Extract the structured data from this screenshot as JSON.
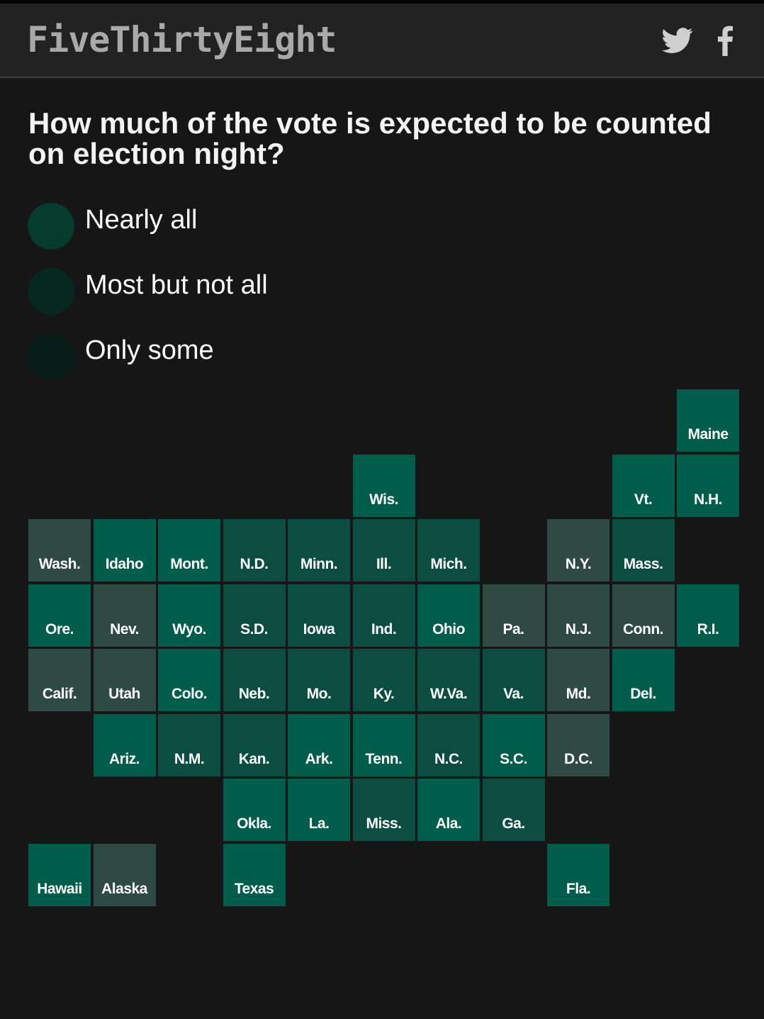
{
  "header": {
    "logo": "FiveThirtyEight",
    "twitter_icon": "twitter-icon",
    "facebook_icon": "facebook-icon"
  },
  "title": "How much of the vote is expected to be counted on election night?",
  "legend": [
    {
      "label": "Nearly all",
      "color": "#063c2b"
    },
    {
      "label": "Most but not all",
      "color": "#06281f"
    },
    {
      "label": "Only some",
      "color": "#061d18"
    }
  ],
  "colors": {
    "background": "#161616",
    "header": "#222222",
    "bright": "#005c4b",
    "mid": "#0b4d41",
    "gray": "#2f4943"
  },
  "states": [
    {
      "label": "Maine",
      "row": 0,
      "col": 10,
      "shade": "bright"
    },
    {
      "label": "Wis.",
      "row": 1,
      "col": 5,
      "shade": "bright"
    },
    {
      "label": "Vt.",
      "row": 1,
      "col": 9,
      "shade": "bright"
    },
    {
      "label": "N.H.",
      "row": 1,
      "col": 10,
      "shade": "bright"
    },
    {
      "label": "Wash.",
      "row": 2,
      "col": 0,
      "shade": "gray"
    },
    {
      "label": "Idaho",
      "row": 2,
      "col": 1,
      "shade": "bright"
    },
    {
      "label": "Mont.",
      "row": 2,
      "col": 2,
      "shade": "bright"
    },
    {
      "label": "N.D.",
      "row": 2,
      "col": 3,
      "shade": "mid"
    },
    {
      "label": "Minn.",
      "row": 2,
      "col": 4,
      "shade": "mid"
    },
    {
      "label": "Ill.",
      "row": 2,
      "col": 5,
      "shade": "mid"
    },
    {
      "label": "Mich.",
      "row": 2,
      "col": 6,
      "shade": "mid"
    },
    {
      "label": "N.Y.",
      "row": 2,
      "col": 8,
      "shade": "gray"
    },
    {
      "label": "Mass.",
      "row": 2,
      "col": 9,
      "shade": "mid"
    },
    {
      "label": "Ore.",
      "row": 3,
      "col": 0,
      "shade": "bright"
    },
    {
      "label": "Nev.",
      "row": 3,
      "col": 1,
      "shade": "gray"
    },
    {
      "label": "Wyo.",
      "row": 3,
      "col": 2,
      "shade": "bright"
    },
    {
      "label": "S.D.",
      "row": 3,
      "col": 3,
      "shade": "mid"
    },
    {
      "label": "Iowa",
      "row": 3,
      "col": 4,
      "shade": "mid"
    },
    {
      "label": "Ind.",
      "row": 3,
      "col": 5,
      "shade": "mid"
    },
    {
      "label": "Ohio",
      "row": 3,
      "col": 6,
      "shade": "bright"
    },
    {
      "label": "Pa.",
      "row": 3,
      "col": 7,
      "shade": "gray"
    },
    {
      "label": "N.J.",
      "row": 3,
      "col": 8,
      "shade": "gray"
    },
    {
      "label": "Conn.",
      "row": 3,
      "col": 9,
      "shade": "gray"
    },
    {
      "label": "R.I.",
      "row": 3,
      "col": 10,
      "shade": "bright"
    },
    {
      "label": "Calif.",
      "row": 4,
      "col": 0,
      "shade": "gray"
    },
    {
      "label": "Utah",
      "row": 4,
      "col": 1,
      "shade": "gray"
    },
    {
      "label": "Colo.",
      "row": 4,
      "col": 2,
      "shade": "bright"
    },
    {
      "label": "Neb.",
      "row": 4,
      "col": 3,
      "shade": "mid"
    },
    {
      "label": "Mo.",
      "row": 4,
      "col": 4,
      "shade": "mid"
    },
    {
      "label": "Ky.",
      "row": 4,
      "col": 5,
      "shade": "mid"
    },
    {
      "label": "W.Va.",
      "row": 4,
      "col": 6,
      "shade": "mid"
    },
    {
      "label": "Va.",
      "row": 4,
      "col": 7,
      "shade": "mid"
    },
    {
      "label": "Md.",
      "row": 4,
      "col": 8,
      "shade": "gray"
    },
    {
      "label": "Del.",
      "row": 4,
      "col": 9,
      "shade": "bright"
    },
    {
      "label": "Ariz.",
      "row": 5,
      "col": 1,
      "shade": "bright"
    },
    {
      "label": "N.M.",
      "row": 5,
      "col": 2,
      "shade": "mid"
    },
    {
      "label": "Kan.",
      "row": 5,
      "col": 3,
      "shade": "mid"
    },
    {
      "label": "Ark.",
      "row": 5,
      "col": 4,
      "shade": "bright"
    },
    {
      "label": "Tenn.",
      "row": 5,
      "col": 5,
      "shade": "bright"
    },
    {
      "label": "N.C.",
      "row": 5,
      "col": 6,
      "shade": "mid"
    },
    {
      "label": "S.C.",
      "row": 5,
      "col": 7,
      "shade": "bright"
    },
    {
      "label": "D.C.",
      "row": 5,
      "col": 8,
      "shade": "gray"
    },
    {
      "label": "Okla.",
      "row": 6,
      "col": 3,
      "shade": "bright"
    },
    {
      "label": "La.",
      "row": 6,
      "col": 4,
      "shade": "bright"
    },
    {
      "label": "Miss.",
      "row": 6,
      "col": 5,
      "shade": "mid"
    },
    {
      "label": "Ala.",
      "row": 6,
      "col": 6,
      "shade": "bright"
    },
    {
      "label": "Ga.",
      "row": 6,
      "col": 7,
      "shade": "mid"
    },
    {
      "label": "Hawaii",
      "row": 7,
      "col": 0,
      "shade": "bright"
    },
    {
      "label": "Alaska",
      "row": 7,
      "col": 1,
      "shade": "gray"
    },
    {
      "label": "Texas",
      "row": 7,
      "col": 3,
      "shade": "bright"
    },
    {
      "label": "Fla.",
      "row": 7,
      "col": 8,
      "shade": "bright"
    }
  ]
}
